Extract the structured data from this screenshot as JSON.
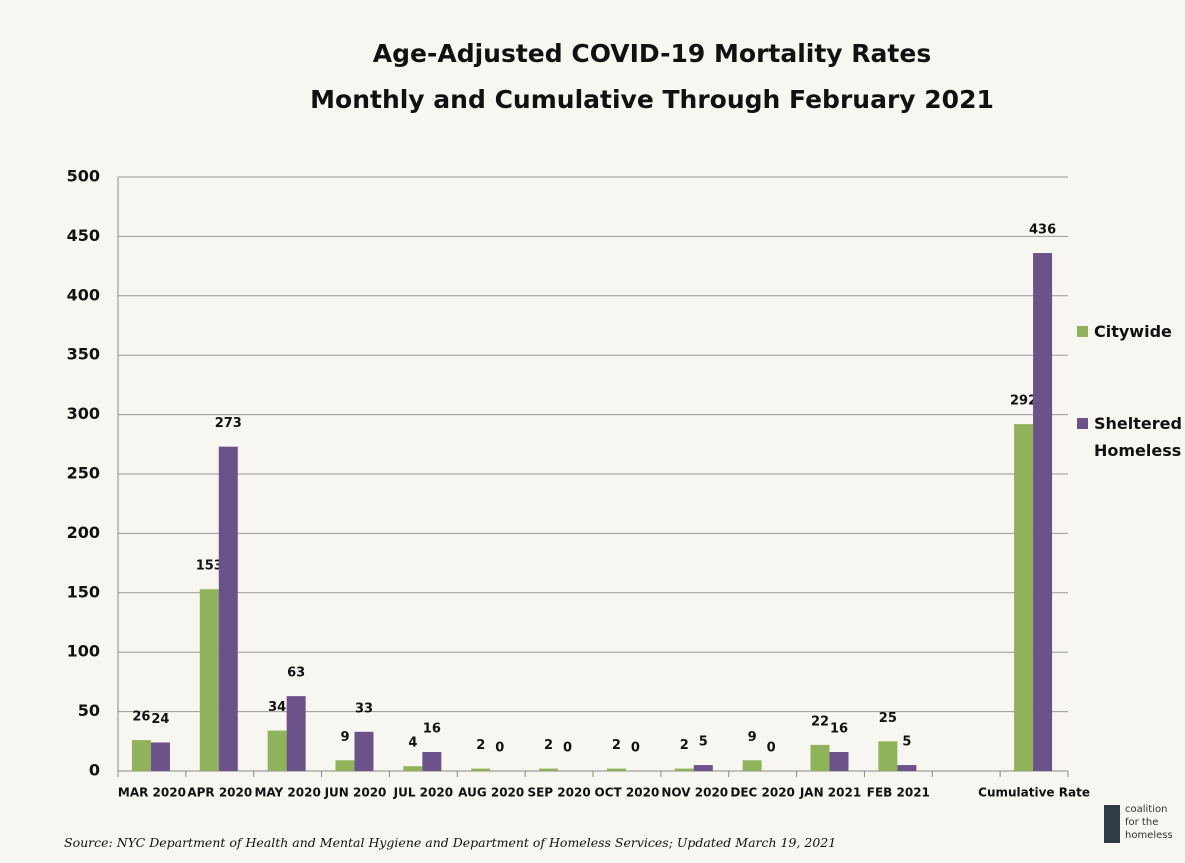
{
  "chart_data": {
    "type": "bar",
    "title": "Age-Adjusted COVID-19 Mortality Rates",
    "subtitle": "Monthly and Cumulative Through February 2021",
    "categories": [
      "MAR 2020",
      "APR 2020",
      "MAY 2020",
      "JUN 2020",
      "JUL 2020",
      "AUG 2020",
      "SEP 2020",
      "OCT 2020",
      "NOV 2020",
      "DEC 2020",
      "JAN 2021",
      "FEB 2021",
      null,
      "Cumulative Rate"
    ],
    "series": [
      {
        "name": "Citywide",
        "color": "#8fb35a",
        "values": [
          26,
          153,
          34,
          9,
          4,
          2,
          2,
          2,
          2,
          9,
          22,
          25,
          null,
          292
        ]
      },
      {
        "name": "Sheltered Homeless",
        "color": "#6b5389",
        "values": [
          24,
          273,
          63,
          33,
          16,
          0,
          0,
          0,
          5,
          0,
          16,
          5,
          null,
          436
        ]
      }
    ],
    "ylim": [
      0,
      500
    ],
    "yticks": [
      0,
      50,
      100,
      150,
      200,
      250,
      300,
      350,
      400,
      450,
      500
    ],
    "grid": true,
    "legend": "right",
    "source": "Source: NYC Department of Health and Mental Hygiene and Department of Homeless Services; Updated March 19, 2021"
  },
  "logo": "coalition for the homeless"
}
